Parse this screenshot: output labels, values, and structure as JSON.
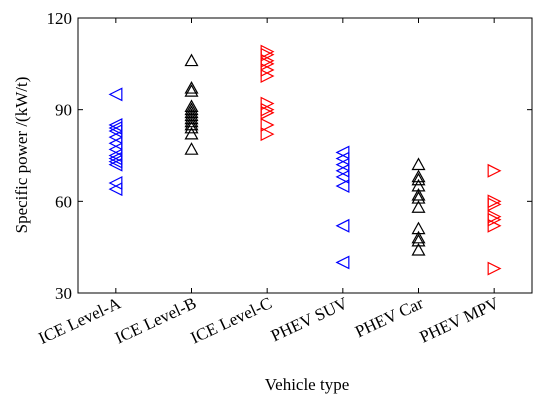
{
  "chart_data": {
    "type": "strip",
    "x_label": "Vehicle type",
    "y_label": "Specific power /(kW/t)",
    "categories": [
      "ICE Level-A",
      "ICE Level-B",
      "ICE Level-C",
      "PHEV SUV",
      "PHEV Car",
      "PHEV MPV"
    ],
    "colors": [
      "#0000ff",
      "#000000",
      "#ff0000",
      "#0000ff",
      "#000000",
      "#ff0000"
    ],
    "markers": [
      "triangle-left",
      "triangle-up",
      "triangle-right",
      "triangle-left",
      "triangle-up",
      "triangle-right"
    ],
    "values": [
      [
        95,
        85,
        84,
        83,
        81,
        79,
        77,
        75,
        74,
        73,
        72,
        66,
        64
      ],
      [
        106,
        97,
        96,
        91,
        90,
        89,
        88,
        87,
        86,
        85,
        84,
        82,
        77
      ],
      [
        109,
        108,
        106,
        105,
        103,
        101,
        92,
        90,
        89,
        85,
        82
      ],
      [
        76,
        74,
        72,
        70,
        68,
        65,
        52,
        40
      ],
      [
        72,
        68,
        67,
        65,
        62,
        61,
        58,
        51,
        48,
        47,
        44
      ],
      [
        70,
        60,
        59,
        55,
        54,
        52,
        38
      ]
    ],
    "ylim": [
      30,
      120
    ],
    "yticks": [
      30,
      60,
      90,
      120
    ]
  }
}
